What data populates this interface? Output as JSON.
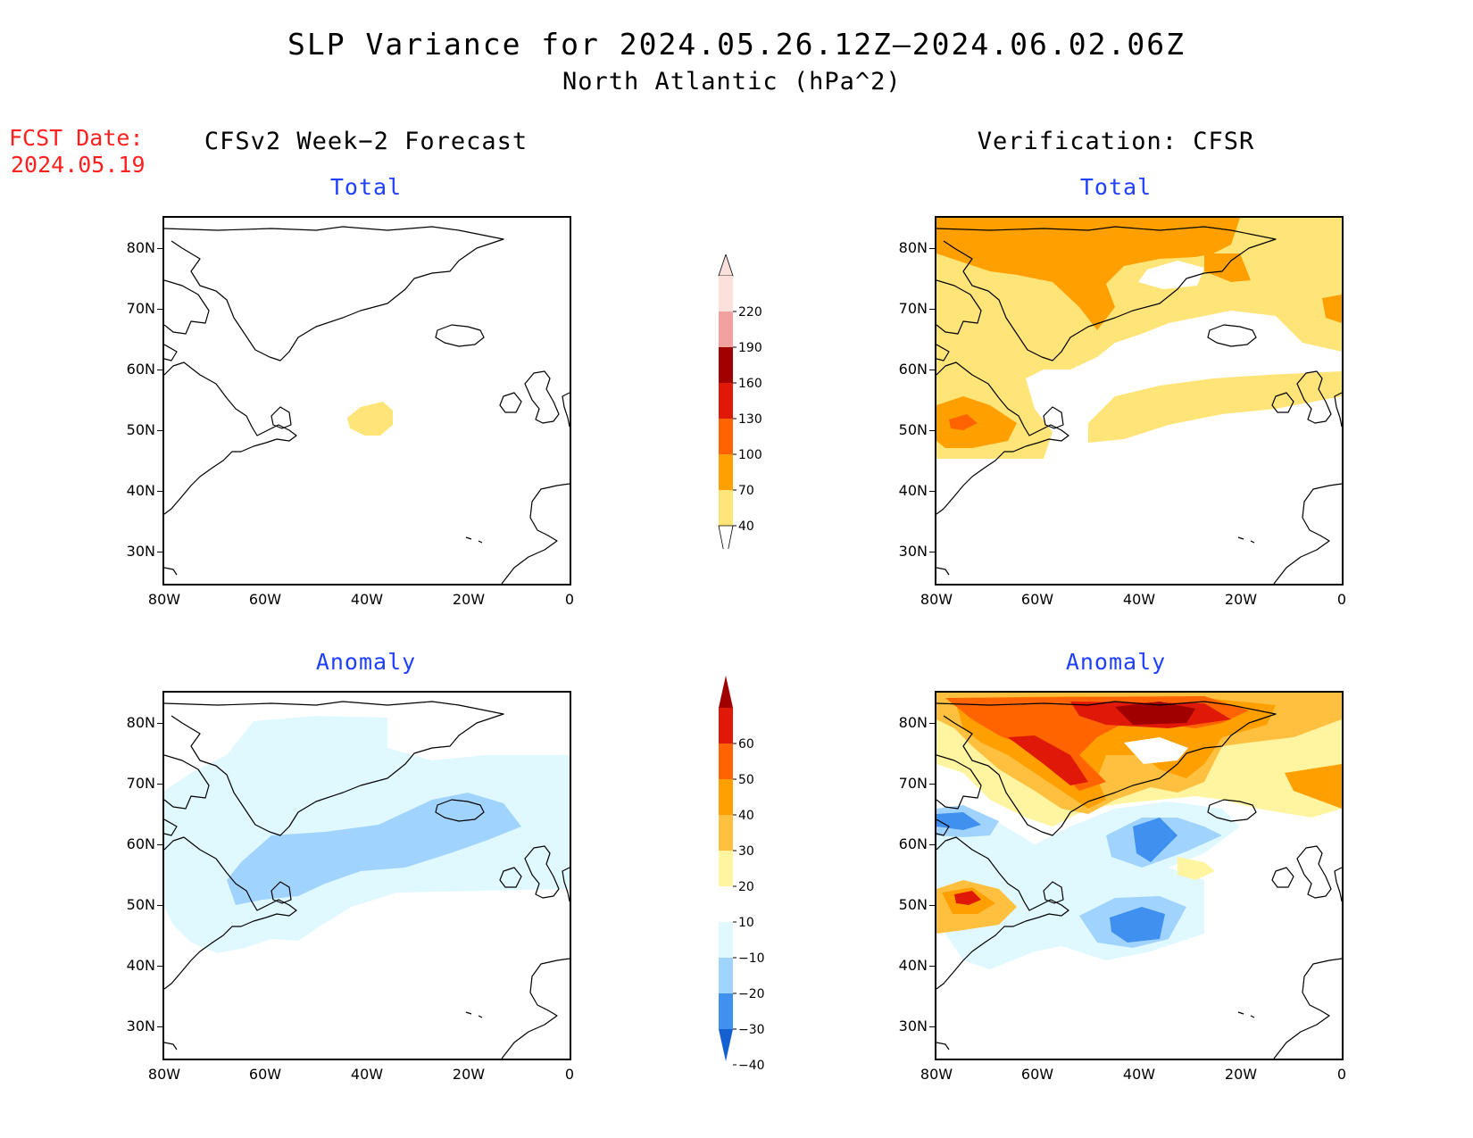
{
  "header": {
    "title": "SLP Variance for 2024.05.26.12Z–2024.06.02.06Z",
    "subtitle": "North Atlantic (hPa^2)",
    "fcst_label": "FCST Date:",
    "fcst_date": "2024.05.19"
  },
  "columns": {
    "left_title": "CFSv2 Week−2 Forecast",
    "right_title": "Verification: CFSR"
  },
  "panels": {
    "total_label": "Total",
    "anomaly_label": "Anomaly"
  },
  "axes": {
    "lat_labels": [
      "80N",
      "70N",
      "60N",
      "50N",
      "40N",
      "30N"
    ],
    "lon_labels": [
      "80W",
      "60W",
      "40W",
      "20W",
      "0"
    ]
  },
  "colorbars": {
    "total": {
      "levels": [
        "220",
        "190",
        "160",
        "130",
        "100",
        "70",
        "40"
      ],
      "colors": [
        "#fbe0dc",
        "#f2a0a0",
        "#a00000",
        "#e01808",
        "#ff6400",
        "#ffa000",
        "#ffe478"
      ]
    },
    "anomaly": {
      "levels": [
        "60",
        "50",
        "40",
        "30",
        "20",
        "10",
        "−10",
        "−20",
        "−30",
        "−40"
      ],
      "colors": [
        "#a00000",
        "#e01808",
        "#ff6400",
        "#ffa000",
        "#ffc040",
        "#fff5a0",
        "#ffffff",
        "#e0f8ff",
        "#a0d4ff",
        "#4090f0",
        "#1460d0"
      ]
    }
  },
  "colors": {
    "title_blue": "#2040ff",
    "fcst_red": "#ff2020"
  }
}
